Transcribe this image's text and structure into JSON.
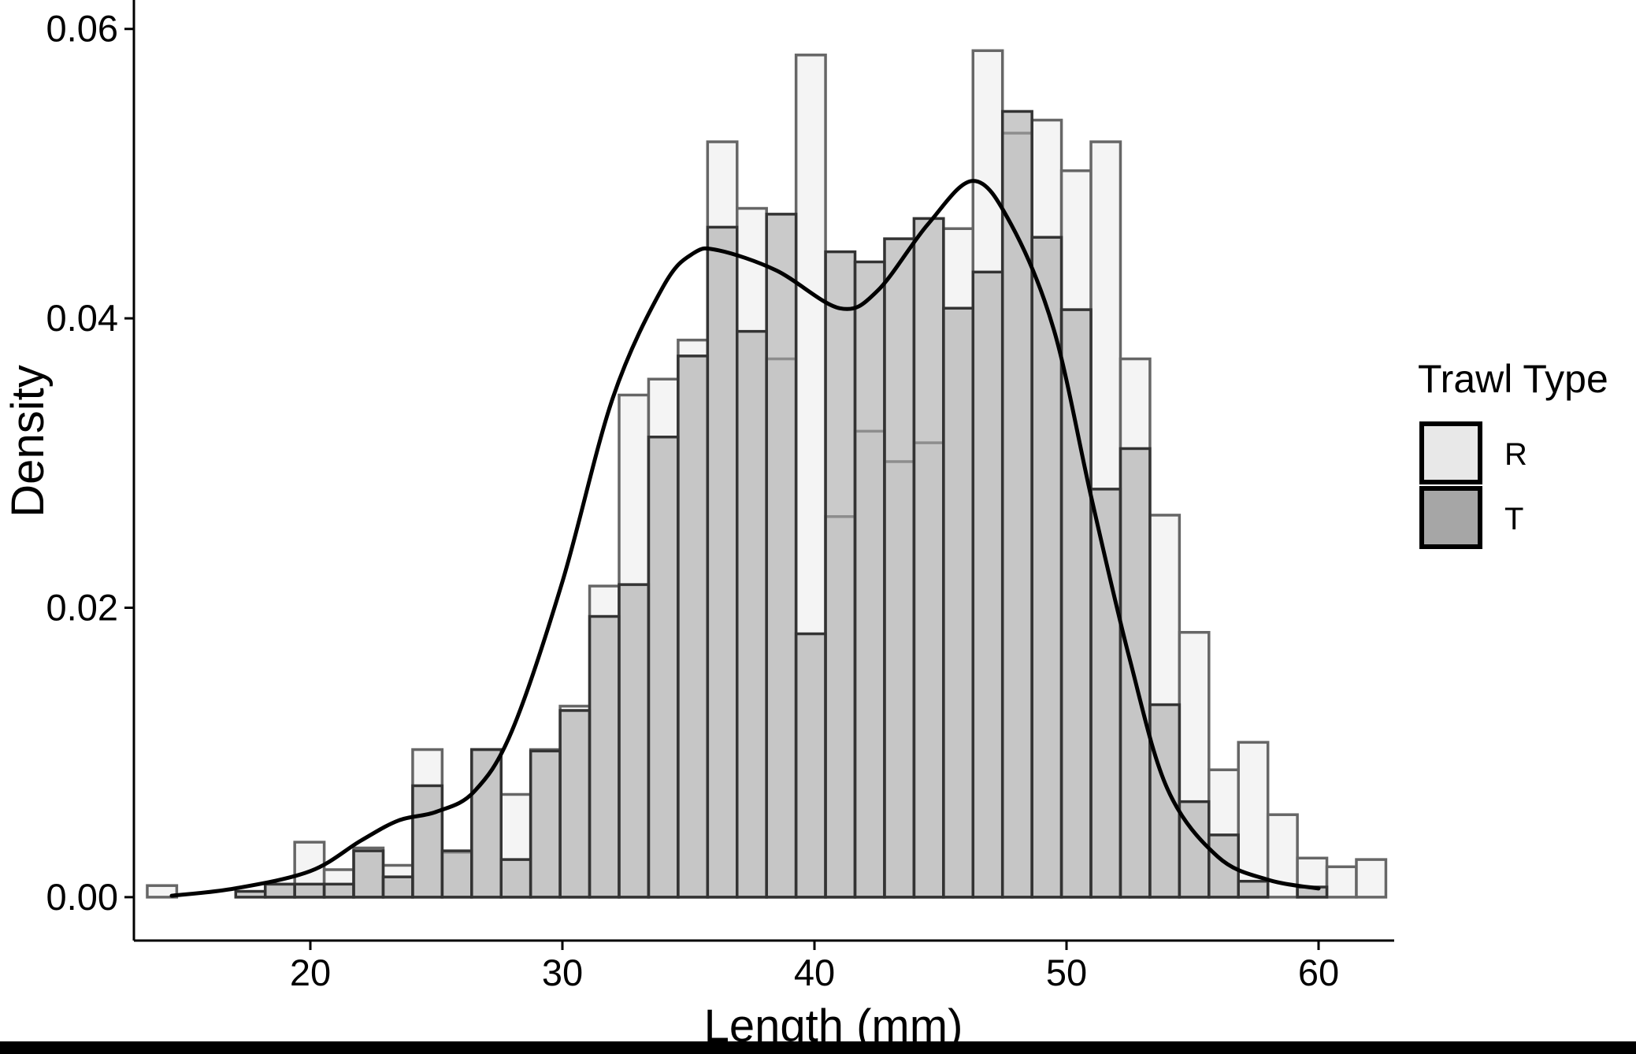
{
  "chart_data": {
    "type": "bar",
    "subtype": "overlaid-histogram-with-density",
    "title": "",
    "xlabel": "Length (mm)",
    "ylabel": "Density",
    "xlim": [
      13,
      63
    ],
    "ylim": [
      -0.003,
      0.062
    ],
    "x_ticks": [
      20,
      30,
      40,
      50,
      60
    ],
    "y_ticks": [
      0,
      0.02,
      0.04,
      0.06
    ],
    "x_tick_labels": [
      "20",
      "30",
      "40",
      "50",
      "60"
    ],
    "y_tick_labels": [
      "0.00",
      "0.02",
      "0.04",
      "0.06"
    ],
    "grid": false,
    "legend_position": "right",
    "bin_width": 1.17,
    "bin_start": 13.53,
    "series": [
      {
        "name": "R",
        "fill": "#f4f4f4",
        "stroke": "#666666",
        "values": [
          0.0008,
          0,
          0,
          0,
          0.0009,
          0.0038,
          0.0019,
          0.0034,
          0.0022,
          0.0102,
          0.0031,
          0.0102,
          0.0071,
          0.0102,
          0.0132,
          0.0215,
          0.0347,
          0.0358,
          0.0385,
          0.0522,
          0.0476,
          0.0372,
          0.0582,
          0.0263,
          0.0322,
          0.0301,
          0.0314,
          0.0462,
          0.0585,
          0.0528,
          0.0537,
          0.0502,
          0.0522,
          0.0372,
          0.0264,
          0.0183,
          0.0088,
          0.0107,
          0.0057,
          0.0027,
          0.0021,
          0.0026
        ]
      },
      {
        "name": "T",
        "fill": "#a6a6a6",
        "stroke": "#333333",
        "values": [
          0,
          0,
          0,
          0.0004,
          0.0009,
          0.0009,
          0.0009,
          0.0032,
          0.0014,
          0.0077,
          0.0032,
          0.0102,
          0.0026,
          0.0101,
          0.0129,
          0.0194,
          0.0216,
          0.0318,
          0.0374,
          0.0463,
          0.0391,
          0.0472,
          0.0182,
          0.0446,
          0.0439,
          0.0455,
          0.0469,
          0.0407,
          0.0432,
          0.0543,
          0.0456,
          0.0406,
          0.0282,
          0.031,
          0.0133,
          0.0066,
          0.0043,
          0.0011,
          0,
          0.0007,
          0,
          0
        ]
      }
    ],
    "density_curve": {
      "x": [
        14.5,
        17,
        20,
        22,
        23.5,
        25,
        26.5,
        28,
        30,
        32,
        34,
        35.2,
        36.2,
        38.5,
        41,
        42.5,
        44.5,
        46.3,
        47.8,
        49.5,
        51,
        52.5,
        54,
        56,
        58,
        60
      ],
      "y": [
        0.0001,
        0.0006,
        0.0018,
        0.0039,
        0.0053,
        0.0059,
        0.0073,
        0.0115,
        0.0218,
        0.0345,
        0.0422,
        0.0445,
        0.0447,
        0.0433,
        0.0407,
        0.0419,
        0.0465,
        0.0495,
        0.0465,
        0.0392,
        0.0275,
        0.0165,
        0.0075,
        0.0028,
        0.0012,
        0.0006
      ]
    }
  },
  "legend": {
    "title": "Trawl Type",
    "items": [
      {
        "label": "R",
        "color": "#e8e8e8"
      },
      {
        "label": "T",
        "color": "#a6a6a6"
      }
    ]
  }
}
